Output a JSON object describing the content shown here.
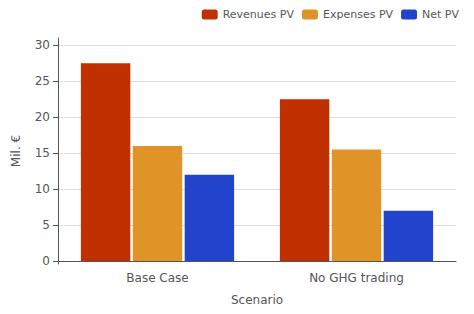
{
  "chart_data": {
    "type": "bar",
    "categories": [
      "Base Case",
      "No GHG trading"
    ],
    "series": [
      {
        "name": "Revenues PV",
        "color": "#C03000",
        "values": [
          27.5,
          22.5
        ]
      },
      {
        "name": "Expenses PV",
        "color": "#E09428",
        "values": [
          16.0,
          15.5
        ]
      },
      {
        "name": "Net PV",
        "color": "#2244CC",
        "values": [
          12.0,
          7.0
        ]
      }
    ],
    "xlabel": "Scenario",
    "ylabel": "Mil. €",
    "ylim": [
      -0.4,
      31
    ],
    "yticks": [
      0,
      5,
      10,
      15,
      20,
      25,
      30
    ],
    "grid": true,
    "legend": "upper right"
  }
}
